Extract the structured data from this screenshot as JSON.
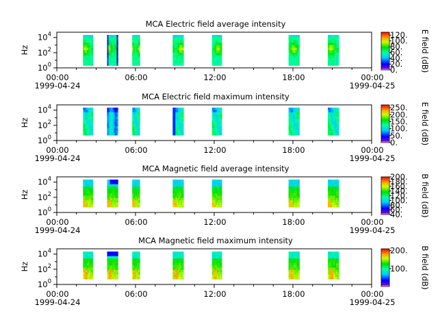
{
  "chart_data": [
    {
      "type": "heatmap",
      "title": "MCA  Electric field average intensity",
      "ylabel": "Hz",
      "yscale": "log",
      "ylim": [
        1,
        50000
      ],
      "ytick_labels": [
        "10^0",
        "10^2",
        "10^4"
      ],
      "xtick_labels": [
        "00:00",
        "06:00",
        "12:00",
        "18:00",
        "00:00"
      ],
      "date_labels": [
        "1999-04-24",
        "1999-04-25"
      ],
      "colorbar": {
        "label": "E field (dB)",
        "range": [
          0,
          130
        ],
        "tick_labels": [
          "0.",
          "20.",
          "40.",
          "60.",
          "80.",
          "100.",
          "120."
        ]
      },
      "segments": [
        {
          "start": "02:00",
          "end": "02:45",
          "kind": "e",
          "bottom_hz": 2
        },
        {
          "start": "03:50",
          "end": "04:40",
          "kind": "e",
          "bottom_hz": 2
        },
        {
          "start": "05:45",
          "end": "06:20",
          "kind": "e",
          "bottom_hz": 2
        },
        {
          "start": "08:50",
          "end": "09:40",
          "kind": "e",
          "bottom_hz": 2
        },
        {
          "start": "11:50",
          "end": "12:35",
          "kind": "e",
          "bottom_hz": 2
        },
        {
          "start": "17:40",
          "end": "18:30",
          "kind": "e",
          "bottom_hz": 2
        },
        {
          "start": "20:40",
          "end": "21:30",
          "kind": "e",
          "bottom_hz": 2
        }
      ]
    },
    {
      "type": "heatmap",
      "title": "MCA  Electric field maximum intensity",
      "ylabel": "Hz",
      "yscale": "log",
      "ylim": [
        1,
        50000
      ],
      "ytick_labels": [
        "10^0",
        "10^2",
        "10^4"
      ],
      "xtick_labels": [
        "00:00",
        "06:00",
        "12:00",
        "18:00",
        "00:00"
      ],
      "date_labels": [
        "1999-04-24",
        "1999-04-25"
      ],
      "colorbar": {
        "label": "E field (dB)",
        "range": [
          0,
          270
        ],
        "tick_labels": [
          "0.",
          "50.",
          "100.",
          "150.",
          "200.",
          "250."
        ]
      },
      "segments": [
        {
          "start": "02:00",
          "end": "02:45",
          "kind": "emax",
          "bottom_hz": 5
        },
        {
          "start": "03:50",
          "end": "04:40",
          "kind": "emax",
          "bottom_hz": 5
        },
        {
          "start": "05:45",
          "end": "06:20",
          "kind": "emax",
          "bottom_hz": 5
        },
        {
          "start": "08:50",
          "end": "09:40",
          "kind": "emax",
          "bottom_hz": 5
        },
        {
          "start": "11:50",
          "end": "12:35",
          "kind": "emax",
          "bottom_hz": 5
        },
        {
          "start": "17:40",
          "end": "18:30",
          "kind": "emax",
          "bottom_hz": 5
        },
        {
          "start": "20:40",
          "end": "21:30",
          "kind": "emax",
          "bottom_hz": 5
        }
      ]
    },
    {
      "type": "heatmap",
      "title": "MCA  Magnetic field average intensity",
      "ylabel": "Hz",
      "yscale": "log",
      "ylim": [
        1,
        50000
      ],
      "ytick_labels": [
        "10^0",
        "10^2",
        "10^4"
      ],
      "xtick_labels": [
        "00:00",
        "06:00",
        "12:00",
        "18:00",
        "00:00"
      ],
      "date_labels": [
        "1999-04-24",
        "1999-04-25"
      ],
      "colorbar": {
        "label": "B field (dB)",
        "range": [
          40,
          200
        ],
        "tick_labels": [
          "40.",
          "60.",
          "80.",
          "100.",
          "120.",
          "140.",
          "160.",
          "180.",
          "200."
        ]
      },
      "segments": [
        {
          "start": "02:00",
          "end": "02:45",
          "kind": "b",
          "bottom_hz": 5
        },
        {
          "start": "03:50",
          "end": "04:40",
          "kind": "b",
          "bottom_hz": 5
        },
        {
          "start": "05:45",
          "end": "06:20",
          "kind": "b",
          "bottom_hz": 5
        },
        {
          "start": "08:50",
          "end": "09:40",
          "kind": "b",
          "bottom_hz": 5
        },
        {
          "start": "11:50",
          "end": "12:35",
          "kind": "b",
          "bottom_hz": 5
        },
        {
          "start": "17:40",
          "end": "18:30",
          "kind": "b",
          "bottom_hz": 5
        },
        {
          "start": "20:40",
          "end": "21:30",
          "kind": "b",
          "bottom_hz": 5
        }
      ]
    },
    {
      "type": "heatmap",
      "title": "MCA  Magnetic field maximum intensity",
      "ylabel": "Hz",
      "yscale": "log",
      "ylim": [
        1,
        50000
      ],
      "ytick_labels": [
        "10^0",
        "10^2",
        "10^4"
      ],
      "xtick_labels": [
        "00:00",
        "06:00",
        "12:00",
        "18:00",
        "00:00"
      ],
      "date_labels": [
        "1999-04-24",
        "1999-04-25"
      ],
      "colorbar": {
        "label": "B field (dB)",
        "range": [
          0,
          210
        ],
        "tick_labels": [
          "100.",
          "200."
        ]
      },
      "segments": [
        {
          "start": "02:00",
          "end": "02:45",
          "kind": "bmax",
          "bottom_hz": 5
        },
        {
          "start": "03:50",
          "end": "04:40",
          "kind": "bmax",
          "bottom_hz": 5
        },
        {
          "start": "05:45",
          "end": "06:20",
          "kind": "bmax",
          "bottom_hz": 5
        },
        {
          "start": "08:50",
          "end": "09:40",
          "kind": "bmax",
          "bottom_hz": 5
        },
        {
          "start": "11:50",
          "end": "12:35",
          "kind": "bmax",
          "bottom_hz": 5
        },
        {
          "start": "17:40",
          "end": "18:30",
          "kind": "bmax",
          "bottom_hz": 5
        },
        {
          "start": "20:40",
          "end": "21:30",
          "kind": "bmax",
          "bottom_hz": 5
        }
      ]
    }
  ]
}
